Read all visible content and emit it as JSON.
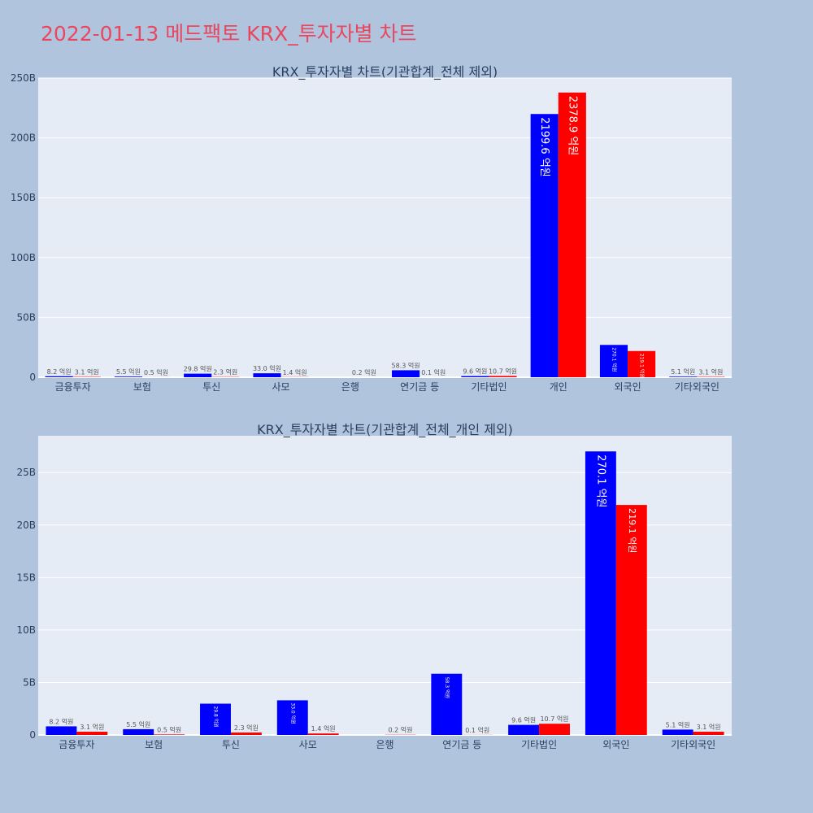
{
  "page_title": "2022-01-13 메드팩토 KRX_투자자별 차트",
  "colors": {
    "background": "#b0c4de",
    "plot_bg": "#e5ecf6",
    "title": "#e8475f",
    "series_buy": "#0000ff",
    "series_sell": "#ff0000"
  },
  "chart_data": [
    {
      "type": "bar",
      "title": "KRX_투자자별 차트(기관합계_전체 제외)",
      "categories": [
        "금융투자",
        "보험",
        "투신",
        "사모",
        "은행",
        "연기금 등",
        "기타법인",
        "개인",
        "외국인",
        "기타외국인"
      ],
      "series": [
        {
          "color": "#0000ff",
          "values": [
            0.82,
            0.55,
            2.98,
            3.3,
            0,
            5.83,
            0.96,
            219.96,
            27.01,
            0.51
          ],
          "labels": [
            "8.2 억원",
            "5.5 억원",
            "29.8 억원",
            "33.0 억원",
            "",
            "58.3 억원",
            "9.6 억원",
            "2199.6 억원",
            "270.1 억원",
            "5.1 억원"
          ]
        },
        {
          "color": "#ff0000",
          "values": [
            0.31,
            0.05,
            0.23,
            0.14,
            0.02,
            0.01,
            1.07,
            237.89,
            21.91,
            0.31
          ],
          "labels": [
            "3.1 억원",
            "0.5 억원",
            "2.3 억원",
            "1.4 억원",
            "0.2 억원",
            "0.1 억원",
            "10.7 억원",
            "2378.9 억원",
            "219.1 억원",
            "3.1 억원"
          ]
        }
      ],
      "ylim": [
        0,
        250
      ],
      "yticks": [
        0,
        50,
        100,
        150,
        200,
        250
      ],
      "ytick_labels": [
        "0",
        "50B",
        "100B",
        "150B",
        "200B",
        "250B"
      ],
      "grid": true
    },
    {
      "type": "bar",
      "title": "KRX_투자자별 차트(기관합계_전체_개인 제외)",
      "categories": [
        "금융투자",
        "보험",
        "투신",
        "사모",
        "은행",
        "연기금 등",
        "기타법인",
        "외국인",
        "기타외국인"
      ],
      "series": [
        {
          "color": "#0000ff",
          "values": [
            0.82,
            0.55,
            2.98,
            3.3,
            0,
            5.83,
            0.96,
            27.01,
            0.51
          ],
          "labels": [
            "8.2 억원",
            "5.5 억원",
            "29.8 억원",
            "33.0 억원",
            "",
            "58.3 억원",
            "9.6 억원",
            "270.1 억원",
            "5.1 억원"
          ]
        },
        {
          "color": "#ff0000",
          "values": [
            0.31,
            0.05,
            0.23,
            0.14,
            0.02,
            0.01,
            1.07,
            21.91,
            0.31
          ],
          "labels": [
            "3.1 억원",
            "0.5 억원",
            "2.3 억원",
            "1.4 억원",
            "0.2 억원",
            "0.1 억원",
            "10.7 억원",
            "219.1 억원",
            "3.1 억원"
          ]
        }
      ],
      "ylim": [
        0,
        28.5
      ],
      "yticks": [
        0,
        5,
        10,
        15,
        20,
        25
      ],
      "ytick_labels": [
        "0",
        "5B",
        "10B",
        "15B",
        "20B",
        "25B"
      ],
      "grid": true
    }
  ]
}
